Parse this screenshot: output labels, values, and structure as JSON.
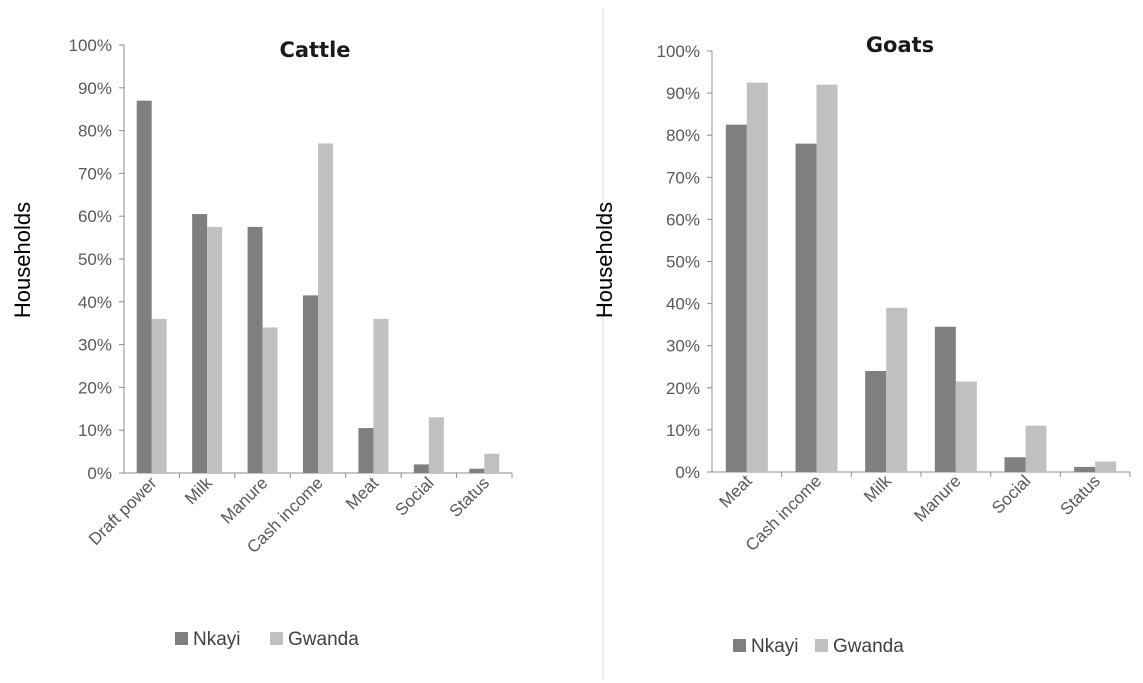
{
  "colors": {
    "nkayi": "#7f7f7f",
    "gwanda": "#c0c0c0",
    "axis": "#8c8c8c",
    "divider": "#d9d9d9"
  },
  "chart_data": [
    {
      "type": "bar",
      "title": "Cattle",
      "ylabel": "Households",
      "xlabel": "",
      "ylim": [
        0,
        100
      ],
      "yticks": [
        "0%",
        "10%",
        "20%",
        "30%",
        "40%",
        "50%",
        "60%",
        "70%",
        "80%",
        "90%",
        "100%"
      ],
      "grid": false,
      "legend": "bottom",
      "categories": [
        "Draft power",
        "Milk",
        "Manure",
        "Cash income",
        "Meat",
        "Social",
        "Status"
      ],
      "series": [
        {
          "name": "Nkayi",
          "values": [
            87,
            60.5,
            57.5,
            41.5,
            10.5,
            2,
            1
          ]
        },
        {
          "name": "Gwanda",
          "values": [
            36,
            57.5,
            34,
            77,
            36,
            13,
            4.5
          ]
        }
      ]
    },
    {
      "type": "bar",
      "title": "Goats",
      "ylabel": "Households",
      "xlabel": "",
      "ylim": [
        0,
        100
      ],
      "yticks": [
        "0%",
        "10%",
        "20%",
        "30%",
        "40%",
        "50%",
        "60%",
        "70%",
        "80%",
        "90%",
        "100%"
      ],
      "grid": false,
      "legend": "bottom",
      "categories": [
        "Meat",
        "Cash income",
        "Milk",
        "Manure",
        "Social",
        "Status"
      ],
      "series": [
        {
          "name": "Nkayi",
          "values": [
            82.5,
            78,
            24,
            34.5,
            3.5,
            1.2
          ]
        },
        {
          "name": "Gwanda",
          "values": [
            92.5,
            92,
            39,
            21.5,
            11,
            2.5
          ]
        }
      ]
    }
  ]
}
